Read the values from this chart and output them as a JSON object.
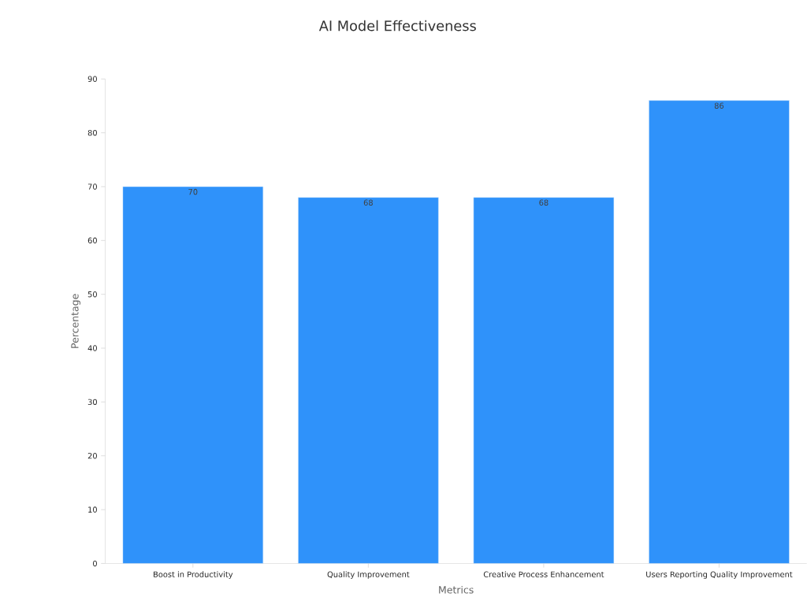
{
  "chart_data": {
    "type": "bar",
    "title": "AI Model Effectiveness",
    "xlabel": "Metrics",
    "ylabel": "Percentage",
    "categories": [
      "Boost in Productivity",
      "Quality Improvement",
      "Creative Process Enhancement",
      "Users Reporting Quality Improvement"
    ],
    "values": [
      70,
      68,
      68,
      86
    ],
    "color": "#2f92fa",
    "ylim": [
      0,
      90
    ],
    "yticks": [
      0,
      10,
      20,
      30,
      40,
      50,
      60,
      70,
      80,
      90
    ],
    "data_labels": true
  }
}
